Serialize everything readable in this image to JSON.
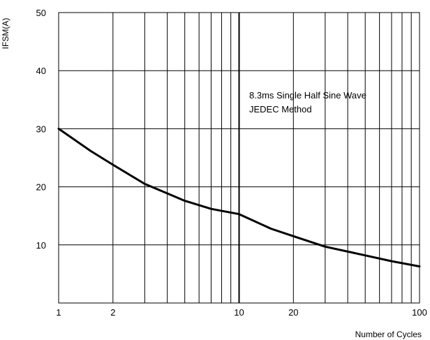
{
  "chart_data": {
    "type": "line",
    "xscale": "log",
    "xlim": [
      1,
      100
    ],
    "ylim": [
      0,
      50
    ],
    "xticks": [
      1,
      2,
      10,
      20,
      100
    ],
    "xtick_labels": [
      "1",
      "2",
      "10",
      "20",
      "100"
    ],
    "yticks": [
      10,
      20,
      30,
      40,
      50
    ],
    "ytick_labels": [
      "10",
      "20",
      "30",
      "40",
      "50"
    ],
    "xlabel": "Number of Cycles",
    "ylabel": "IFSM(A)",
    "grid": true,
    "annotation": [
      "8.3ms Single Half Sine Wave",
      "JEDEC Method"
    ],
    "series": [
      {
        "x": [
          1,
          1.5,
          2,
          3,
          5,
          7,
          10,
          15,
          20,
          30,
          50,
          70,
          100
        ],
        "y": [
          30,
          26.2,
          23.8,
          20.5,
          17.6,
          16.2,
          15.3,
          12.8,
          11.5,
          9.7,
          8.2,
          7.2,
          6.3
        ]
      }
    ],
    "line_color": "#000000",
    "grid_color": "#000000"
  }
}
